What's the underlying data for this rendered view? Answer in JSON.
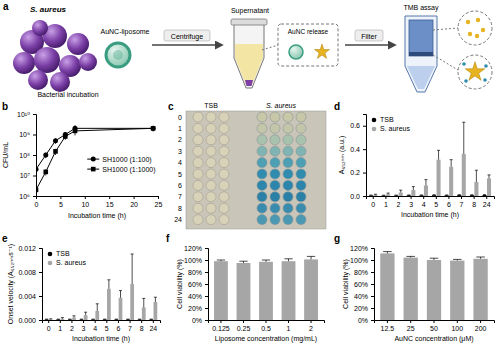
{
  "panel_labels": [
    "a",
    "b",
    "c",
    "d",
    "e",
    "f",
    "g"
  ],
  "diagram": {
    "bacteria": "S. aureus",
    "liposome": "AuNC-liposome",
    "incubation": "Bacterial incubation",
    "centrifuge": "Centrifuge",
    "supernatant": "Supernatant",
    "release": "AuNC release",
    "filter": "Filter",
    "assay": "TMB assay"
  },
  "plate": {
    "columns": [
      "TSB",
      "S. aureus"
    ],
    "rows": [
      "0",
      "1",
      "2",
      "3",
      "4",
      "5",
      "6",
      "7",
      "8",
      "24"
    ],
    "colors": [
      "#c8c7a8",
      "#c3c6a9",
      "#a9c2ae",
      "#7fb4b3",
      "#4d9fb3",
      "#2f8cae",
      "#2c86ab",
      "#2a80a7",
      "#3a8caf",
      "#4b98b3"
    ]
  },
  "chart_data": [
    {
      "type": "line",
      "x_label": "Incubation time (h)",
      "y_label": "CFU/mL",
      "log": "y",
      "x": [
        0,
        2,
        4,
        6,
        8,
        24
      ],
      "xlim": [
        0,
        25
      ],
      "xticks": [
        0,
        5,
        10,
        15,
        20,
        25
      ],
      "ylim": [
        1000000,
        10000000000
      ],
      "yticks": [
        {
          "value": 1000000,
          "label": "10⁶"
        },
        {
          "value": 10000000,
          "label": "10⁷"
        },
        {
          "value": 100000000,
          "label": "10⁸"
        },
        {
          "value": 1000000000,
          "label": "10⁹"
        },
        {
          "value": 10000000000,
          "label": "10¹⁰"
        }
      ],
      "legend": "right",
      "series": [
        {
          "name": "SH1000 (1:100)",
          "color": "#000000",
          "marker": "circle",
          "values": [
            20000000,
            100000000,
            500000000,
            1000000000,
            2000000000,
            2000000000
          ],
          "errors": [
            5000000,
            30000000,
            150000000,
            300000000,
            800000000,
            600000000
          ]
        },
        {
          "name": "SH1000 (1:1000)",
          "color": "#000000",
          "marker": "square",
          "values": [
            2000000,
            15000000,
            150000000,
            800000000,
            1500000000,
            2000000000
          ],
          "errors": [
            500000,
            5000000,
            50000000,
            250000000,
            600000000,
            500000000
          ]
        }
      ]
    },
    {
      "type": "bar",
      "x_label": "Incubation time (h)",
      "y_label": "A₆₅₂ₙₘ (a.u.)",
      "categories": [
        "0",
        "1",
        "2",
        "3",
        "4",
        "5",
        "6",
        "7",
        "8",
        "24"
      ],
      "ylim": [
        0,
        0.7
      ],
      "yticks": [
        {
          "value": 0,
          "label": "0.0"
        },
        {
          "value": 0.2,
          "label": "0.2"
        },
        {
          "value": 0.4,
          "label": "0.4"
        },
        {
          "value": 0.6,
          "label": "0.6"
        }
      ],
      "legend": "top-left",
      "series": [
        {
          "name": "TSB",
          "color": "#000000",
          "values": [
            0.005,
            0.004,
            0.005,
            0.006,
            0.006,
            0.007,
            0.006,
            0.008,
            0.007,
            0.008
          ],
          "errors": [
            0.003,
            0.003,
            0.003,
            0.003,
            0.003,
            0.004,
            0.003,
            0.004,
            0.004,
            0.004
          ]
        },
        {
          "name": "S. aureus",
          "color": "#a6a6a6",
          "values": [
            0.01,
            0.015,
            0.03,
            0.05,
            0.09,
            0.31,
            0.25,
            0.36,
            0.12,
            0.15
          ],
          "errors": [
            0.005,
            0.01,
            0.02,
            0.03,
            0.05,
            0.08,
            0.06,
            0.27,
            0.1,
            0.03
          ]
        }
      ]
    },
    {
      "type": "bar",
      "x_label": "Incubation time (h)",
      "y_label": "Onset velocity (A₆₅₂ₙₘs⁻¹)",
      "categories": [
        "0",
        "1",
        "2",
        "3",
        "4",
        "5",
        "6",
        "7",
        "8",
        "24"
      ],
      "ylim": [
        0,
        0.012
      ],
      "yticks": [
        {
          "value": 0,
          "label": "0.000"
        },
        {
          "value": 0.004,
          "label": "0.004"
        },
        {
          "value": 0.008,
          "label": "0.008"
        },
        {
          "value": 0.012,
          "label": "0.012"
        }
      ],
      "legend": "top-left",
      "series": [
        {
          "name": "TSB",
          "color": "#000000",
          "values": [
            0.0001,
            0.0001,
            0.0001,
            0.0001,
            0.0001,
            0.0001,
            0.0001,
            0.0001,
            0.0001,
            0.0001
          ],
          "errors": [
            5e-05,
            5e-05,
            5e-05,
            5e-05,
            5e-05,
            5e-05,
            5e-05,
            5e-05,
            5e-05,
            5e-05
          ]
        },
        {
          "name": "S. aureus",
          "color": "#a6a6a6",
          "values": [
            0.0001,
            0.0002,
            0.0004,
            0.0008,
            0.0015,
            0.0052,
            0.0037,
            0.006,
            0.0021,
            0.003
          ],
          "errors": [
            0.0001,
            0.0002,
            0.0003,
            0.0005,
            0.0012,
            0.0015,
            0.0012,
            0.005,
            0.0015,
            0.0008
          ]
        }
      ]
    },
    {
      "type": "bar",
      "x_label": "Liposome concentration (mg/mL)",
      "y_label": "Cell viability (%)",
      "categories": [
        "0.125",
        "0.25",
        "0.5",
        "1",
        "2"
      ],
      "ylim": [
        0,
        120
      ],
      "yticks": [
        {
          "value": 0,
          "label": "0%"
        },
        {
          "value": 20,
          "label": "20%"
        },
        {
          "value": 40,
          "label": "40%"
        },
        {
          "value": 60,
          "label": "60%"
        },
        {
          "value": 80,
          "label": "80%"
        },
        {
          "value": 100,
          "label": "100%"
        },
        {
          "value": 120,
          "label": "120%"
        }
      ],
      "series": [
        {
          "color": "#a6a6a6",
          "values": [
            98,
            95,
            97,
            98,
            101
          ],
          "errors": [
            2,
            3,
            3,
            4,
            5
          ]
        }
      ]
    },
    {
      "type": "bar",
      "x_label": "AuNC concentration (μM)",
      "y_label": "Cell viability (%)",
      "categories": [
        "12.5",
        "25",
        "50",
        "100",
        "200"
      ],
      "ylim": [
        0,
        120
      ],
      "yticks": [
        {
          "value": 0,
          "label": "0%"
        },
        {
          "value": 20,
          "label": "20%"
        },
        {
          "value": 40,
          "label": "40%"
        },
        {
          "value": 60,
          "label": "60%"
        },
        {
          "value": 80,
          "label": "80%"
        },
        {
          "value": 100,
          "label": "100%"
        },
        {
          "value": 120,
          "label": "120%"
        }
      ],
      "series": [
        {
          "color": "#a6a6a6",
          "values": [
            111,
            104,
            100,
            99,
            102
          ],
          "errors": [
            3,
            2,
            3,
            2,
            3
          ]
        }
      ]
    }
  ]
}
